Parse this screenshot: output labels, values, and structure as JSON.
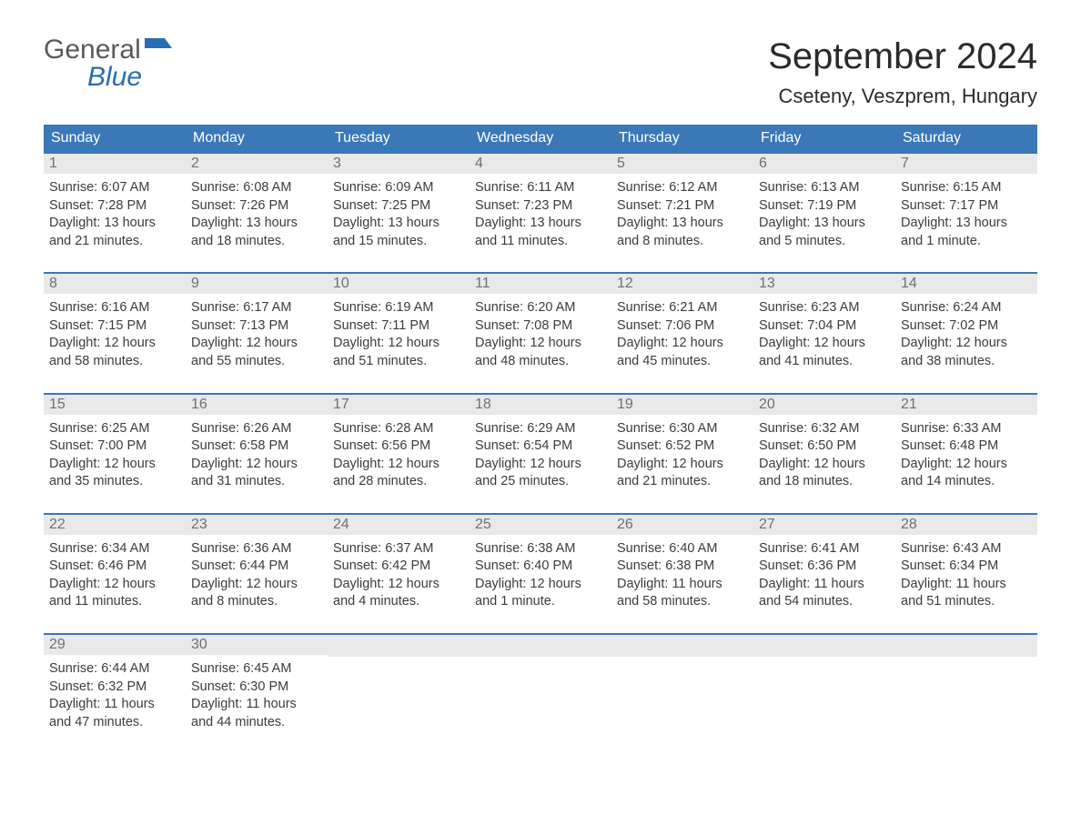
{
  "logo": {
    "word1": "General",
    "word2": "Blue",
    "flag_color": "#2a6db3"
  },
  "title": "September 2024",
  "location": "Cseteny, Veszprem, Hungary",
  "colors": {
    "header_bar": "#3a78b8",
    "week_border": "#3a78b8",
    "daynum_bg": "#e9e9e9",
    "daynum_text": "#707070",
    "body_text": "#3c3c3c",
    "title_text": "#2b2b2b",
    "background": "#ffffff"
  },
  "typography": {
    "title_fontsize": 40,
    "location_fontsize": 22,
    "dow_fontsize": 16,
    "body_fontsize": 14.5
  },
  "days_of_week": [
    "Sunday",
    "Monday",
    "Tuesday",
    "Wednesday",
    "Thursday",
    "Friday",
    "Saturday"
  ],
  "calendar": {
    "columns": 7,
    "first_day_column": 0,
    "days": [
      {
        "n": 1,
        "sunrise": "6:07 AM",
        "sunset": "7:28 PM",
        "daylight": "13 hours and 21 minutes."
      },
      {
        "n": 2,
        "sunrise": "6:08 AM",
        "sunset": "7:26 PM",
        "daylight": "13 hours and 18 minutes."
      },
      {
        "n": 3,
        "sunrise": "6:09 AM",
        "sunset": "7:25 PM",
        "daylight": "13 hours and 15 minutes."
      },
      {
        "n": 4,
        "sunrise": "6:11 AM",
        "sunset": "7:23 PM",
        "daylight": "13 hours and 11 minutes."
      },
      {
        "n": 5,
        "sunrise": "6:12 AM",
        "sunset": "7:21 PM",
        "daylight": "13 hours and 8 minutes."
      },
      {
        "n": 6,
        "sunrise": "6:13 AM",
        "sunset": "7:19 PM",
        "daylight": "13 hours and 5 minutes."
      },
      {
        "n": 7,
        "sunrise": "6:15 AM",
        "sunset": "7:17 PM",
        "daylight": "13 hours and 1 minute."
      },
      {
        "n": 8,
        "sunrise": "6:16 AM",
        "sunset": "7:15 PM",
        "daylight": "12 hours and 58 minutes."
      },
      {
        "n": 9,
        "sunrise": "6:17 AM",
        "sunset": "7:13 PM",
        "daylight": "12 hours and 55 minutes."
      },
      {
        "n": 10,
        "sunrise": "6:19 AM",
        "sunset": "7:11 PM",
        "daylight": "12 hours and 51 minutes."
      },
      {
        "n": 11,
        "sunrise": "6:20 AM",
        "sunset": "7:08 PM",
        "daylight": "12 hours and 48 minutes."
      },
      {
        "n": 12,
        "sunrise": "6:21 AM",
        "sunset": "7:06 PM",
        "daylight": "12 hours and 45 minutes."
      },
      {
        "n": 13,
        "sunrise": "6:23 AM",
        "sunset": "7:04 PM",
        "daylight": "12 hours and 41 minutes."
      },
      {
        "n": 14,
        "sunrise": "6:24 AM",
        "sunset": "7:02 PM",
        "daylight": "12 hours and 38 minutes."
      },
      {
        "n": 15,
        "sunrise": "6:25 AM",
        "sunset": "7:00 PM",
        "daylight": "12 hours and 35 minutes."
      },
      {
        "n": 16,
        "sunrise": "6:26 AM",
        "sunset": "6:58 PM",
        "daylight": "12 hours and 31 minutes."
      },
      {
        "n": 17,
        "sunrise": "6:28 AM",
        "sunset": "6:56 PM",
        "daylight": "12 hours and 28 minutes."
      },
      {
        "n": 18,
        "sunrise": "6:29 AM",
        "sunset": "6:54 PM",
        "daylight": "12 hours and 25 minutes."
      },
      {
        "n": 19,
        "sunrise": "6:30 AM",
        "sunset": "6:52 PM",
        "daylight": "12 hours and 21 minutes."
      },
      {
        "n": 20,
        "sunrise": "6:32 AM",
        "sunset": "6:50 PM",
        "daylight": "12 hours and 18 minutes."
      },
      {
        "n": 21,
        "sunrise": "6:33 AM",
        "sunset": "6:48 PM",
        "daylight": "12 hours and 14 minutes."
      },
      {
        "n": 22,
        "sunrise": "6:34 AM",
        "sunset": "6:46 PM",
        "daylight": "12 hours and 11 minutes."
      },
      {
        "n": 23,
        "sunrise": "6:36 AM",
        "sunset": "6:44 PM",
        "daylight": "12 hours and 8 minutes."
      },
      {
        "n": 24,
        "sunrise": "6:37 AM",
        "sunset": "6:42 PM",
        "daylight": "12 hours and 4 minutes."
      },
      {
        "n": 25,
        "sunrise": "6:38 AM",
        "sunset": "6:40 PM",
        "daylight": "12 hours and 1 minute."
      },
      {
        "n": 26,
        "sunrise": "6:40 AM",
        "sunset": "6:38 PM",
        "daylight": "11 hours and 58 minutes."
      },
      {
        "n": 27,
        "sunrise": "6:41 AM",
        "sunset": "6:36 PM",
        "daylight": "11 hours and 54 minutes."
      },
      {
        "n": 28,
        "sunrise": "6:43 AM",
        "sunset": "6:34 PM",
        "daylight": "11 hours and 51 minutes."
      },
      {
        "n": 29,
        "sunrise": "6:44 AM",
        "sunset": "6:32 PM",
        "daylight": "11 hours and 47 minutes."
      },
      {
        "n": 30,
        "sunrise": "6:45 AM",
        "sunset": "6:30 PM",
        "daylight": "11 hours and 44 minutes."
      }
    ]
  },
  "labels": {
    "sunrise_prefix": "Sunrise: ",
    "sunset_prefix": "Sunset: ",
    "daylight_prefix": "Daylight: "
  }
}
